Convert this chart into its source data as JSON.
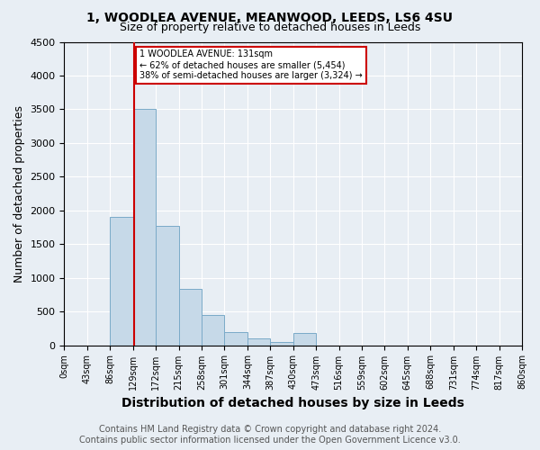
{
  "title": "1, WOODLEA AVENUE, MEANWOOD, LEEDS, LS6 4SU",
  "subtitle": "Size of property relative to detached houses in Leeds",
  "xlabel": "Distribution of detached houses by size in Leeds",
  "ylabel": "Number of detached properties",
  "bin_labels": [
    "0sqm",
    "43sqm",
    "86sqm",
    "129sqm",
    "172sqm",
    "215sqm",
    "258sqm",
    "301sqm",
    "344sqm",
    "387sqm",
    "430sqm",
    "473sqm",
    "516sqm",
    "559sqm",
    "602sqm",
    "645sqm",
    "688sqm",
    "731sqm",
    "774sqm",
    "817sqm",
    "860sqm"
  ],
  "bin_edges": [
    0,
    43,
    86,
    129,
    172,
    215,
    258,
    301,
    344,
    387,
    430,
    473,
    516,
    559,
    602,
    645,
    688,
    731,
    774,
    817,
    860
  ],
  "bar_heights": [
    0,
    0,
    1900,
    3500,
    1775,
    840,
    450,
    200,
    100,
    50,
    180,
    0,
    0,
    0,
    0,
    0,
    0,
    0,
    0,
    0
  ],
  "bar_color": "#c6d9e8",
  "bar_edge_color": "#7aaac8",
  "property_size": 131,
  "property_line_color": "#cc0000",
  "ylim": [
    0,
    4500
  ],
  "annotation_line1": "1 WOODLEA AVENUE: 131sqm",
  "annotation_line2": "← 62% of detached houses are smaller (5,454)",
  "annotation_line3": "38% of semi-detached houses are larger (3,324) →",
  "annotation_box_color": "#ffffff",
  "annotation_box_edge": "#cc0000",
  "footer_line1": "Contains HM Land Registry data © Crown copyright and database right 2024.",
  "footer_line2": "Contains public sector information licensed under the Open Government Licence v3.0.",
  "background_color": "#e8eef4",
  "plot_background": "#e8eef4",
  "title_fontsize": 10,
  "subtitle_fontsize": 9,
  "axis_label_fontsize": 9,
  "tick_fontsize": 7,
  "footer_fontsize": 7
}
